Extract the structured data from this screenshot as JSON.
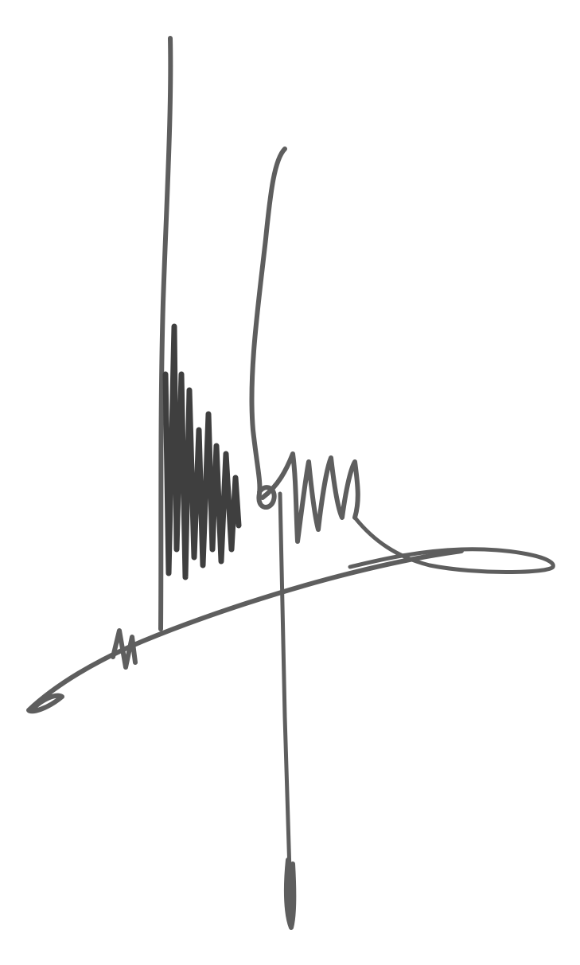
{
  "signature": {
    "ink_color": "#5e5e5e",
    "ink_color_dark": "#3f3f3f",
    "background_color": "#ffffff"
  }
}
